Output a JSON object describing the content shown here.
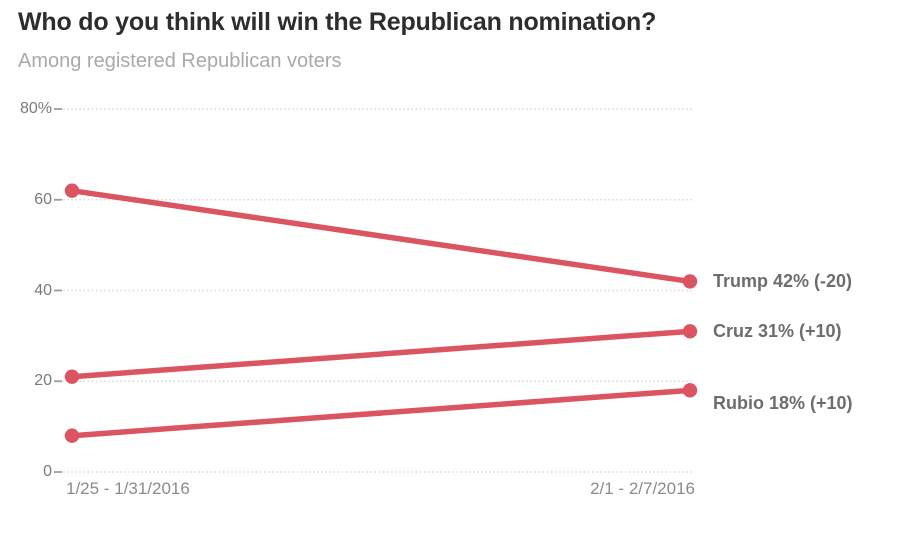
{
  "header": {
    "title": "Who do you think will win the Republican nomination?",
    "subtitle": "Among registered Republican voters"
  },
  "chart_data": {
    "type": "line",
    "title": "Who do you think will win the Republican nomination?",
    "subtitle": "Among registered Republican voters",
    "x_categories": [
      "1/25 - 1/31/2016",
      "2/1 - 2/7/2016"
    ],
    "series": [
      {
        "name": "Trump",
        "values": [
          62,
          42
        ],
        "end_label": "Trump 42% (-20)"
      },
      {
        "name": "Cruz",
        "values": [
          21,
          31
        ],
        "end_label": "Cruz 31% (+10)"
      },
      {
        "name": "Rubio",
        "values": [
          8,
          18
        ],
        "end_label": "Rubio 18% (+10)"
      }
    ],
    "ylim": [
      0,
      80
    ],
    "yticks": [
      0,
      20,
      40,
      60,
      80
    ],
    "ytick_labels": [
      "0",
      "20",
      "40",
      "60",
      "80%"
    ],
    "grid": "horizontal dotted",
    "legend_position": "right end labels",
    "colors": {
      "line": "#db5461",
      "title": "#2d2d2d",
      "subtitle": "#a9a9a9",
      "axis_label": "#7a7a7a",
      "x_label": "#8b8b8b",
      "series_label": "#6d6d6d",
      "gridline": "#d9d9d9",
      "tick": "#9b9b9b"
    }
  }
}
